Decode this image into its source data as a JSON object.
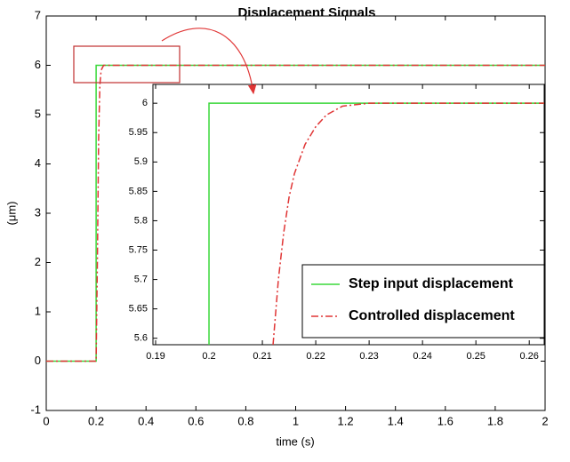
{
  "chart_data": [
    {
      "type": "line",
      "title": "Displacement Signals",
      "xlabel": "time (s)",
      "ylabel": "(μm)",
      "xlim": [
        0,
        2
      ],
      "xticks": [
        0,
        0.2,
        0.4,
        0.6,
        0.8,
        1,
        1.2,
        1.4,
        1.6,
        1.8,
        2
      ],
      "ylim": [
        -1,
        7
      ],
      "yticks": [
        -1,
        0,
        1,
        2,
        3,
        4,
        5,
        6,
        7
      ],
      "series": [
        {
          "name": "Step input displacement",
          "color": "#3ad83a",
          "x": [
            0,
            0.2,
            0.2,
            2
          ],
          "values": [
            0,
            0,
            6,
            6
          ]
        },
        {
          "name": "Controlled displacement",
          "color": "#e03535",
          "x": [
            0,
            0.2,
            0.205,
            0.21,
            0.215,
            0.22,
            0.23,
            2
          ],
          "values": [
            0,
            0,
            2,
            4.5,
            5.6,
            5.9,
            6,
            6
          ]
        }
      ]
    },
    {
      "type": "line",
      "xlim": [
        0.1895,
        0.2628
      ],
      "xticks": [
        0.19,
        0.2,
        0.21,
        0.22,
        0.23,
        0.24,
        0.25,
        0.26
      ],
      "ylim": [
        5.589,
        6.032
      ],
      "yticks": [
        5.6,
        5.65,
        5.7,
        5.75,
        5.8,
        5.85,
        5.9,
        5.95,
        6
      ],
      "series": [
        {
          "color": "#3ad83a",
          "x": [
            0.2,
            0.2,
            0.2628
          ],
          "values": [
            5.589,
            6,
            6
          ]
        },
        {
          "color": "#e03535",
          "x": [
            0.212,
            0.213,
            0.214,
            0.215,
            0.216,
            0.218,
            0.22,
            0.222,
            0.225,
            0.23,
            0.2628
          ],
          "values": [
            5.589,
            5.7,
            5.78,
            5.84,
            5.88,
            5.93,
            5.96,
            5.98,
            5.995,
            6,
            6
          ]
        }
      ]
    }
  ]
}
